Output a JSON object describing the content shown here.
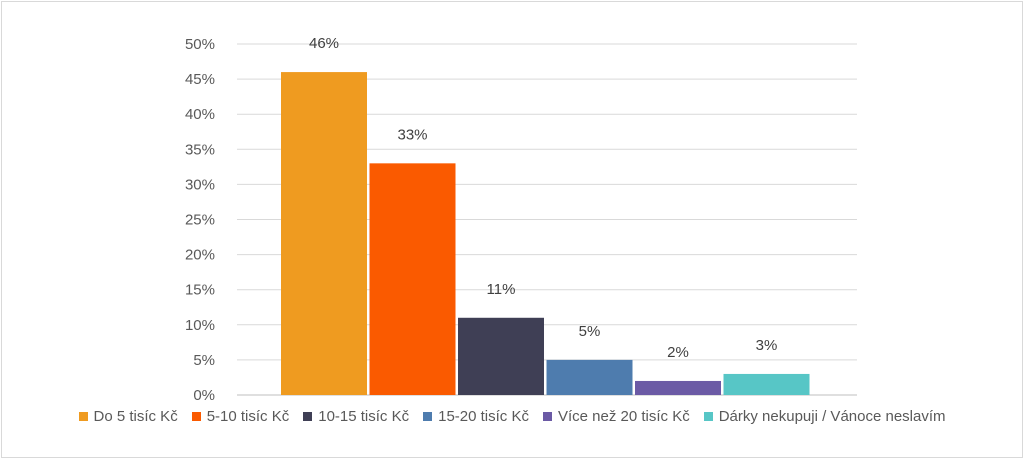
{
  "chart_data": {
    "type": "bar",
    "title": "",
    "xlabel": "",
    "ylabel": "",
    "ylim": [
      0,
      50
    ],
    "yticks": [
      "0%",
      "5%",
      "10%",
      "15%",
      "20%",
      "25%",
      "30%",
      "35%",
      "40%",
      "45%",
      "50%"
    ],
    "grid": true,
    "legend_position": "bottom",
    "categories": [
      "Do 5 tisíc Kč",
      "5-10 tisíc Kč",
      "10-15 tisíc Kč",
      "15-20 tisíc Kč",
      "Více než 20 tisíc Kč",
      "Dárky nekupuji / Vánoce neslavím"
    ],
    "values": [
      46,
      33,
      11,
      5,
      2,
      3
    ],
    "data_labels": [
      "46%",
      "33%",
      "11%",
      "5%",
      "2%",
      "3%"
    ],
    "colors": [
      "#ef9b20",
      "#fa5a00",
      "#3f3f55",
      "#4e7cae",
      "#6b5aa5",
      "#57c6c6"
    ]
  }
}
